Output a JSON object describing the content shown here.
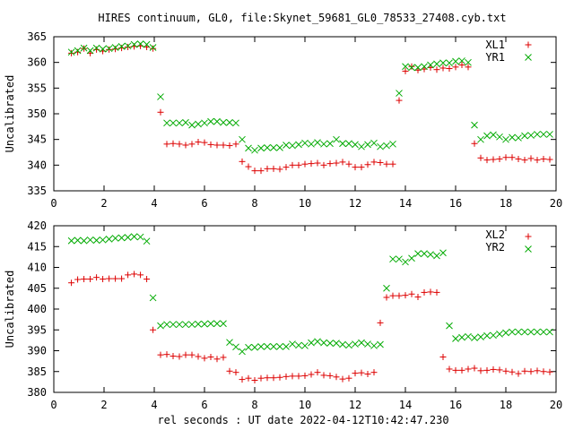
{
  "title": "HIRES continuum, GL0, file:Skynet_59681_GL0_78533_27408.cyb.txt",
  "xlabel": "rel seconds : UT date 2022-04-12T10:42:47.230",
  "colors": {
    "series1": "#dd0000",
    "series2": "#00aa00"
  },
  "chart_data": [
    {
      "type": "scatter",
      "ylabel": "Uncalibrated",
      "xlim": [
        0,
        20
      ],
      "ylim": [
        335,
        365
      ],
      "xticks": [
        0,
        2,
        4,
        6,
        8,
        10,
        12,
        14,
        16,
        18,
        20
      ],
      "yticks": [
        335,
        340,
        345,
        350,
        355,
        360,
        365
      ],
      "legend_position": "top-right",
      "series": [
        {
          "name": "XL1",
          "marker": "plus",
          "x": [
            0.7,
            0.95,
            1.2,
            1.45,
            1.7,
            1.95,
            2.2,
            2.45,
            2.7,
            2.95,
            3.2,
            3.45,
            3.7,
            3.95,
            4.25,
            4.5,
            4.75,
            5.0,
            5.25,
            5.5,
            5.75,
            6.0,
            6.25,
            6.5,
            6.75,
            7.0,
            7.25,
            7.5,
            7.75,
            8.0,
            8.25,
            8.5,
            8.75,
            9.0,
            9.25,
            9.5,
            9.75,
            10.0,
            10.25,
            10.5,
            10.75,
            11.0,
            11.25,
            11.5,
            11.75,
            12.0,
            12.25,
            12.5,
            12.75,
            13.0,
            13.25,
            13.5,
            13.75,
            14.0,
            14.25,
            14.5,
            14.75,
            15.0,
            15.25,
            15.5,
            15.75,
            16.0,
            16.25,
            16.5,
            16.75,
            17.0,
            17.25,
            17.5,
            17.75,
            18.0,
            18.25,
            18.5,
            18.75,
            19.0,
            19.25,
            19.5,
            19.75
          ],
          "y": [
            361.8,
            362.0,
            362.7,
            361.8,
            362.5,
            362.2,
            362.5,
            362.6,
            362.8,
            363.0,
            363.1,
            363.2,
            363.0,
            362.7,
            350.3,
            344.1,
            344.2,
            344.1,
            343.9,
            344.1,
            344.5,
            344.4,
            344.0,
            343.9,
            343.9,
            343.8,
            344.1,
            340.7,
            339.7,
            338.9,
            338.9,
            339.3,
            339.3,
            339.2,
            339.6,
            340.0,
            340.0,
            340.2,
            340.3,
            340.4,
            340.0,
            340.3,
            340.4,
            340.6,
            340.2,
            339.6,
            339.6,
            340.1,
            340.6,
            340.5,
            340.2,
            340.2,
            352.6,
            358.3,
            359.2,
            358.5,
            358.7,
            359.0,
            358.6,
            358.9,
            358.8,
            359.1,
            359.5,
            359.1,
            344.2,
            341.4,
            341.0,
            341.1,
            341.2,
            341.5,
            341.5,
            341.2,
            341.0,
            341.3,
            341.0,
            341.2,
            341.1
          ]
        },
        {
          "name": "YR1",
          "marker": "cross",
          "x": [
            0.7,
            0.95,
            1.2,
            1.45,
            1.7,
            1.95,
            2.2,
            2.45,
            2.7,
            2.95,
            3.2,
            3.45,
            3.7,
            3.95,
            4.25,
            4.5,
            4.75,
            5.0,
            5.25,
            5.5,
            5.75,
            6.0,
            6.25,
            6.5,
            6.75,
            7.0,
            7.25,
            7.5,
            7.75,
            8.0,
            8.25,
            8.5,
            8.75,
            9.0,
            9.25,
            9.5,
            9.75,
            10.0,
            10.25,
            10.5,
            10.75,
            11.0,
            11.25,
            11.5,
            11.75,
            12.0,
            12.25,
            12.5,
            12.75,
            13.0,
            13.25,
            13.5,
            13.75,
            14.0,
            14.25,
            14.5,
            14.75,
            15.0,
            15.25,
            15.5,
            15.75,
            16.0,
            16.25,
            16.5,
            16.75,
            17.0,
            17.25,
            17.5,
            17.75,
            18.0,
            18.25,
            18.5,
            18.75,
            19.0,
            19.25,
            19.5,
            19.75
          ],
          "y": [
            362.0,
            362.3,
            362.8,
            362.3,
            362.8,
            362.6,
            362.7,
            362.9,
            363.1,
            363.2,
            363.5,
            363.6,
            363.5,
            362.9,
            353.3,
            348.2,
            348.2,
            348.2,
            348.3,
            347.8,
            348.0,
            348.2,
            348.5,
            348.5,
            348.3,
            348.3,
            348.2,
            345.0,
            343.3,
            342.9,
            343.3,
            343.4,
            343.4,
            343.4,
            343.9,
            343.8,
            344.0,
            344.3,
            344.1,
            344.4,
            344.1,
            344.2,
            345.0,
            344.2,
            344.2,
            344.0,
            343.6,
            344.0,
            344.3,
            343.6,
            343.8,
            344.1,
            354.0,
            359.2,
            359.0,
            359.0,
            359.2,
            359.5,
            359.7,
            359.9,
            359.9,
            360.2,
            360.3,
            360.0,
            347.8,
            345.0,
            345.7,
            345.9,
            345.5,
            345.0,
            345.4,
            345.3,
            345.7,
            345.8,
            346.0,
            346.0,
            346.0
          ]
        }
      ]
    },
    {
      "type": "scatter",
      "ylabel": "Uncalibrated",
      "xlim": [
        0,
        20
      ],
      "ylim": [
        380,
        420
      ],
      "xticks": [
        0,
        2,
        4,
        6,
        8,
        10,
        12,
        14,
        16,
        18,
        20
      ],
      "yticks": [
        380,
        385,
        390,
        395,
        400,
        405,
        410,
        415,
        420
      ],
      "legend_position": "top-right",
      "series": [
        {
          "name": "XL2",
          "marker": "plus",
          "x": [
            0.7,
            0.95,
            1.2,
            1.45,
            1.7,
            1.95,
            2.2,
            2.45,
            2.7,
            2.95,
            3.2,
            3.45,
            3.7,
            3.95,
            4.25,
            4.5,
            4.75,
            5.0,
            5.25,
            5.5,
            5.75,
            6.0,
            6.25,
            6.5,
            6.75,
            7.0,
            7.25,
            7.5,
            7.75,
            8.0,
            8.25,
            8.5,
            8.75,
            9.0,
            9.25,
            9.5,
            9.75,
            10.0,
            10.25,
            10.5,
            10.75,
            11.0,
            11.25,
            11.5,
            11.75,
            12.0,
            12.25,
            12.5,
            12.75,
            13.0,
            13.25,
            13.5,
            13.75,
            14.0,
            14.25,
            14.5,
            14.75,
            15.0,
            15.25,
            15.5,
            15.75,
            16.0,
            16.25,
            16.5,
            16.75,
            17.0,
            17.25,
            17.5,
            17.75,
            18.0,
            18.25,
            18.5,
            18.75,
            19.0,
            19.25,
            19.5,
            19.75
          ],
          "y": [
            406.3,
            407.1,
            407.2,
            407.2,
            407.6,
            407.2,
            407.3,
            407.3,
            407.3,
            408.2,
            408.4,
            408.2,
            407.2,
            395.0,
            389.0,
            389.1,
            388.7,
            388.6,
            389.0,
            389.0,
            388.6,
            388.2,
            388.5,
            388.0,
            388.4,
            385.1,
            384.8,
            383.1,
            383.4,
            382.9,
            383.4,
            383.5,
            383.5,
            383.6,
            383.8,
            383.9,
            383.9,
            384.0,
            384.3,
            384.8,
            384.1,
            384.0,
            383.7,
            383.2,
            383.4,
            384.6,
            384.7,
            384.4,
            384.8,
            396.7,
            402.8,
            403.2,
            403.2,
            403.3,
            403.6,
            402.9,
            404.0,
            404.1,
            404.0,
            388.5,
            385.6,
            385.3,
            385.3,
            385.6,
            385.8,
            385.2,
            385.3,
            385.5,
            385.4,
            385.1,
            384.9,
            384.5,
            385.1,
            385.0,
            385.2,
            385.0,
            384.9
          ],
          "x_override": [
            0.7,
            0.95,
            1.2,
            1.45,
            1.7,
            1.95,
            2.2,
            2.45,
            2.7,
            2.95,
            3.2,
            3.45,
            3.7,
            4.0,
            4.25,
            4.5,
            4.75,
            5.0,
            5.25,
            5.5,
            5.75,
            6.0,
            6.25,
            6.5,
            6.75,
            7.0,
            7.25,
            7.5,
            7.75,
            8.0,
            8.25,
            8.5,
            8.75,
            9.0,
            9.25,
            9.5,
            9.75,
            10.0,
            10.25,
            10.5,
            10.75,
            11.0,
            11.25,
            11.5,
            11.75,
            12.0,
            12.25,
            12.5,
            12.75,
            14.0,
            14.25,
            14.5,
            14.75,
            15.0,
            15.25,
            15.5,
            15.75,
            16.0,
            16.25,
            17.0,
            17.25,
            17.5,
            17.75,
            18.0,
            18.25,
            18.5,
            18.75,
            19.0,
            19.25,
            19.5,
            19.75,
            19.75,
            19.75,
            19.75,
            19.75,
            19.75,
            19.75
          ]
        },
        {
          "name": "YR2",
          "marker": "cross",
          "x": [
            0.7,
            0.95,
            1.2,
            1.45,
            1.7,
            1.95,
            2.2,
            2.45,
            2.7,
            2.95,
            3.2,
            3.45,
            3.7,
            3.95,
            4.25,
            4.5,
            4.75,
            5.0,
            5.25,
            5.5,
            5.75,
            6.0,
            6.25,
            6.5,
            6.75,
            7.0,
            7.25,
            7.5,
            7.75,
            8.0,
            8.25,
            8.5,
            8.75,
            9.0,
            9.25,
            9.5,
            9.75,
            10.0,
            10.25,
            10.5,
            10.75,
            11.0,
            11.25,
            11.5,
            11.75,
            12.0,
            12.25,
            12.5,
            12.75,
            13.0,
            13.25,
            13.5,
            13.75,
            14.0,
            14.25,
            14.5,
            14.75,
            15.0,
            15.25,
            15.5,
            15.75,
            16.0,
            16.25,
            16.5,
            16.75,
            17.0,
            17.25,
            17.5,
            17.75,
            18.0,
            18.25,
            18.5,
            18.75,
            19.0,
            19.25,
            19.5,
            19.75
          ],
          "y": [
            416.4,
            416.5,
            416.4,
            416.6,
            416.5,
            416.6,
            416.8,
            417.0,
            417.1,
            417.2,
            417.4,
            417.3,
            416.3,
            402.7,
            396.0,
            396.3,
            396.3,
            396.3,
            396.3,
            396.3,
            396.4,
            396.4,
            396.5,
            396.5,
            396.5,
            392.0,
            390.9,
            389.8,
            390.8,
            390.8,
            391.0,
            391.0,
            391.0,
            391.0,
            391.0,
            391.6,
            391.3,
            391.2,
            391.9,
            392.2,
            391.9,
            391.8,
            391.8,
            391.5,
            391.3,
            391.6,
            391.9,
            391.6,
            391.2,
            391.5,
            405.0,
            412.0,
            412.0,
            411.3,
            412.2,
            413.3,
            413.3,
            413.1,
            412.8,
            413.5,
            396.0,
            392.9,
            393.2,
            393.4,
            393.1,
            393.3,
            393.6,
            393.7,
            394.0,
            394.3,
            394.5,
            394.5,
            394.5,
            394.5,
            394.5,
            394.5,
            394.5
          ]
        }
      ]
    }
  ]
}
